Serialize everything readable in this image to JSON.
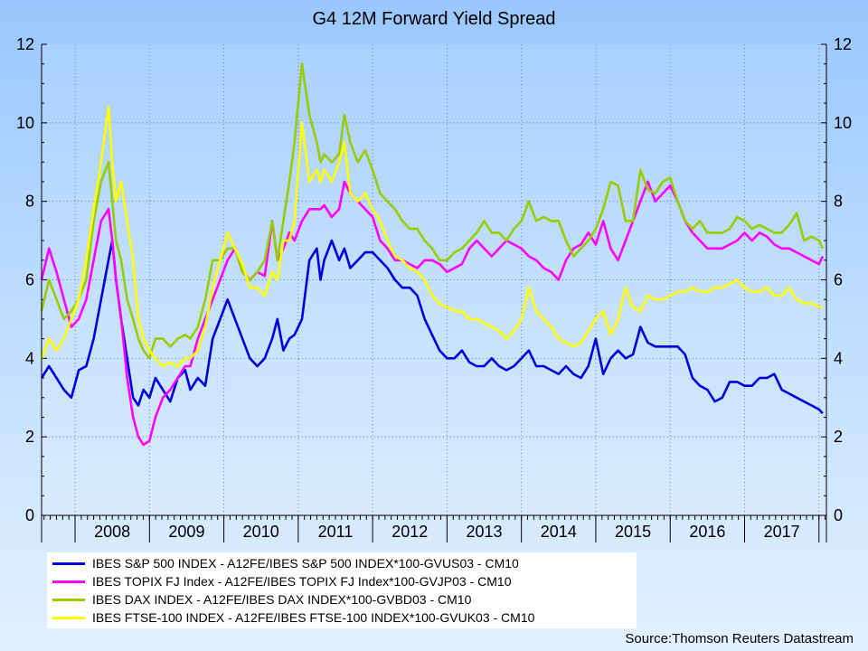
{
  "chart_data": {
    "type": "line",
    "title": "G4 12M Forward Yield Spread",
    "source": "Source:Thomson Reuters Datastream",
    "xlabel": "",
    "ylabel": "",
    "ylim": [
      0,
      12
    ],
    "xlim": [
      2007.55,
      2018.1
    ],
    "y_ticks": [
      "0",
      "2",
      "4",
      "6",
      "8",
      "10",
      "12"
    ],
    "x_labels": [
      "2008",
      "2009",
      "2010",
      "2011",
      "2012",
      "2013",
      "2014",
      "2015",
      "2016",
      "2017"
    ],
    "grid": true,
    "legend_position": "bottom-left",
    "series": [
      {
        "name": "IBES S&P 500 INDEX - A12FE/IBES S&P 500 INDEX*100-GVUS03 - CM10",
        "color": "#0000dd",
        "x": [
          2007.55,
          2007.65,
          2007.75,
          2007.85,
          2007.95,
          2008.05,
          2008.15,
          2008.25,
          2008.35,
          2008.45,
          2008.5,
          2008.55,
          2008.62,
          2008.7,
          2008.78,
          2008.85,
          2008.92,
          2009.0,
          2009.08,
          2009.18,
          2009.28,
          2009.38,
          2009.48,
          2009.55,
          2009.65,
          2009.75,
          2009.85,
          2009.95,
          2010.05,
          2010.15,
          2010.25,
          2010.35,
          2010.45,
          2010.55,
          2010.65,
          2010.72,
          2010.8,
          2010.88,
          2010.95,
          2011.05,
          2011.15,
          2011.25,
          2011.3,
          2011.35,
          2011.45,
          2011.55,
          2011.62,
          2011.7,
          2011.8,
          2011.9,
          2012.0,
          2012.1,
          2012.2,
          2012.3,
          2012.4,
          2012.5,
          2012.6,
          2012.7,
          2012.8,
          2012.9,
          2013.0,
          2013.1,
          2013.2,
          2013.3,
          2013.4,
          2013.5,
          2013.6,
          2013.7,
          2013.8,
          2013.9,
          2014.0,
          2014.1,
          2014.2,
          2014.3,
          2014.4,
          2014.5,
          2014.6,
          2014.7,
          2014.8,
          2014.9,
          2015.0,
          2015.1,
          2015.2,
          2015.3,
          2015.4,
          2015.5,
          2015.6,
          2015.7,
          2015.8,
          2015.9,
          2016.0,
          2016.1,
          2016.2,
          2016.3,
          2016.4,
          2016.5,
          2016.6,
          2016.7,
          2016.8,
          2016.9,
          2017.0,
          2017.1,
          2017.2,
          2017.3,
          2017.4,
          2017.5,
          2017.6,
          2017.7,
          2017.8,
          2017.9,
          2018.0,
          2018.05
        ],
        "values": [
          3.5,
          3.8,
          3.5,
          3.2,
          3.0,
          3.7,
          3.8,
          4.5,
          5.5,
          6.5,
          7.0,
          6.0,
          5.0,
          4.0,
          3.0,
          2.8,
          3.2,
          3.0,
          3.5,
          3.2,
          2.9,
          3.5,
          3.7,
          3.2,
          3.5,
          3.3,
          4.5,
          5.0,
          5.5,
          5.0,
          4.5,
          4.0,
          3.8,
          4.0,
          4.5,
          5.0,
          4.2,
          4.5,
          4.6,
          5.0,
          6.5,
          6.8,
          6.0,
          6.5,
          7.0,
          6.5,
          6.8,
          6.3,
          6.5,
          6.7,
          6.7,
          6.5,
          6.3,
          6.0,
          5.8,
          5.8,
          5.6,
          5.0,
          4.6,
          4.2,
          4.0,
          4.0,
          4.2,
          3.9,
          3.8,
          3.8,
          4.0,
          3.8,
          3.7,
          3.8,
          4.0,
          4.2,
          3.8,
          3.8,
          3.7,
          3.6,
          3.8,
          3.6,
          3.5,
          3.8,
          4.5,
          3.6,
          4.0,
          4.2,
          4.0,
          4.1,
          4.8,
          4.4,
          4.3,
          4.3,
          4.3,
          4.3,
          4.1,
          3.5,
          3.3,
          3.2,
          2.9,
          3.0,
          3.4,
          3.4,
          3.3,
          3.3,
          3.5,
          3.5,
          3.6,
          3.2,
          3.1,
          3.0,
          2.9,
          2.8,
          2.7,
          2.6
        ]
      },
      {
        "name": "IBES TOPIX FJ Index - A12FE/IBES TOPIX FJ Index*100-GVJP03 - CM10",
        "color": "#ff00ff",
        "x": [
          2007.55,
          2007.65,
          2007.75,
          2007.85,
          2007.95,
          2008.05,
          2008.15,
          2008.25,
          2008.35,
          2008.45,
          2008.5,
          2008.55,
          2008.62,
          2008.7,
          2008.78,
          2008.85,
          2008.92,
          2009.0,
          2009.08,
          2009.18,
          2009.28,
          2009.38,
          2009.48,
          2009.55,
          2009.65,
          2009.75,
          2009.85,
          2009.95,
          2010.05,
          2010.15,
          2010.25,
          2010.35,
          2010.45,
          2010.55,
          2010.65,
          2010.72,
          2010.8,
          2010.88,
          2010.95,
          2011.05,
          2011.15,
          2011.25,
          2011.3,
          2011.35,
          2011.45,
          2011.55,
          2011.62,
          2011.7,
          2011.8,
          2011.9,
          2012.0,
          2012.1,
          2012.2,
          2012.3,
          2012.4,
          2012.5,
          2012.6,
          2012.7,
          2012.8,
          2012.9,
          2013.0,
          2013.1,
          2013.2,
          2013.3,
          2013.4,
          2013.5,
          2013.6,
          2013.7,
          2013.8,
          2013.9,
          2014.0,
          2014.1,
          2014.2,
          2014.3,
          2014.4,
          2014.5,
          2014.6,
          2014.7,
          2014.8,
          2014.9,
          2015.0,
          2015.1,
          2015.2,
          2015.3,
          2015.4,
          2015.5,
          2015.6,
          2015.7,
          2015.8,
          2015.9,
          2016.0,
          2016.1,
          2016.2,
          2016.3,
          2016.4,
          2016.5,
          2016.6,
          2016.7,
          2016.8,
          2016.9,
          2017.0,
          2017.1,
          2017.2,
          2017.3,
          2017.4,
          2017.5,
          2017.6,
          2017.7,
          2017.8,
          2017.9,
          2018.0,
          2018.05
        ],
        "values": [
          6.0,
          6.8,
          6.2,
          5.5,
          4.8,
          5.0,
          5.5,
          6.5,
          7.5,
          7.8,
          7.0,
          6.0,
          5.0,
          3.5,
          2.5,
          2.0,
          1.8,
          1.9,
          2.5,
          3.0,
          3.2,
          3.5,
          3.8,
          3.8,
          4.5,
          5.0,
          5.5,
          6.0,
          6.5,
          6.8,
          6.2,
          6.0,
          6.2,
          6.1,
          7.5,
          6.5,
          6.8,
          7.2,
          7.0,
          7.5,
          7.8,
          7.8,
          7.8,
          7.9,
          7.6,
          7.8,
          8.5,
          8.2,
          8.0,
          7.8,
          7.6,
          7.0,
          6.8,
          6.5,
          6.5,
          6.4,
          6.3,
          6.5,
          6.5,
          6.4,
          6.2,
          6.3,
          6.4,
          6.8,
          7.0,
          6.8,
          6.6,
          6.8,
          7.0,
          6.9,
          6.8,
          6.6,
          6.5,
          6.3,
          6.2,
          6.0,
          6.5,
          6.8,
          6.9,
          7.2,
          6.9,
          7.5,
          6.8,
          6.5,
          7.0,
          7.5,
          8.0,
          8.5,
          8.0,
          8.2,
          8.4,
          8.0,
          7.5,
          7.2,
          7.0,
          6.8,
          6.8,
          6.8,
          6.9,
          7.0,
          7.2,
          7.0,
          7.2,
          7.1,
          6.9,
          6.8,
          6.8,
          6.7,
          6.6,
          6.5,
          6.4,
          6.6
        ]
      },
      {
        "name": "IBES DAX INDEX - A12FE/IBES DAX INDEX*100-GVBD03 - CM10",
        "color": "#99cc00",
        "x": [
          2007.55,
          2007.65,
          2007.75,
          2007.85,
          2007.95,
          2008.05,
          2008.15,
          2008.25,
          2008.35,
          2008.45,
          2008.5,
          2008.55,
          2008.62,
          2008.7,
          2008.78,
          2008.85,
          2008.92,
          2009.0,
          2009.08,
          2009.18,
          2009.28,
          2009.38,
          2009.48,
          2009.55,
          2009.65,
          2009.75,
          2009.85,
          2009.95,
          2010.05,
          2010.15,
          2010.25,
          2010.35,
          2010.45,
          2010.55,
          2010.65,
          2010.72,
          2010.8,
          2010.88,
          2010.95,
          2011.05,
          2011.15,
          2011.25,
          2011.3,
          2011.35,
          2011.45,
          2011.55,
          2011.62,
          2011.7,
          2011.8,
          2011.9,
          2012.0,
          2012.1,
          2012.2,
          2012.3,
          2012.4,
          2012.5,
          2012.6,
          2012.7,
          2012.8,
          2012.9,
          2013.0,
          2013.1,
          2013.2,
          2013.3,
          2013.4,
          2013.5,
          2013.6,
          2013.7,
          2013.8,
          2013.9,
          2014.0,
          2014.1,
          2014.2,
          2014.3,
          2014.4,
          2014.5,
          2014.6,
          2014.7,
          2014.8,
          2014.9,
          2015.0,
          2015.1,
          2015.2,
          2015.3,
          2015.4,
          2015.5,
          2015.6,
          2015.7,
          2015.8,
          2015.9,
          2016.0,
          2016.1,
          2016.2,
          2016.3,
          2016.4,
          2016.5,
          2016.6,
          2016.7,
          2016.8,
          2016.9,
          2017.0,
          2017.1,
          2017.2,
          2017.3,
          2017.4,
          2017.5,
          2017.6,
          2017.7,
          2017.8,
          2017.9,
          2018.0,
          2018.05
        ],
        "values": [
          5.2,
          6.0,
          5.5,
          5.0,
          5.2,
          5.5,
          6.0,
          7.5,
          8.5,
          9.0,
          8.0,
          7.0,
          6.5,
          5.5,
          5.0,
          4.5,
          4.2,
          4.0,
          4.5,
          4.5,
          4.3,
          4.5,
          4.6,
          4.5,
          4.8,
          5.5,
          6.5,
          6.5,
          6.8,
          6.8,
          6.2,
          6.0,
          6.2,
          6.5,
          7.5,
          6.5,
          7.5,
          8.5,
          9.5,
          11.5,
          10.2,
          9.5,
          9.0,
          9.2,
          9.0,
          9.2,
          10.2,
          9.5,
          9.0,
          9.3,
          8.8,
          8.2,
          8.0,
          7.8,
          7.5,
          7.3,
          7.3,
          7.0,
          6.8,
          6.5,
          6.5,
          6.7,
          6.8,
          7.0,
          7.2,
          7.5,
          7.2,
          7.2,
          7.0,
          7.3,
          7.5,
          8.0,
          7.5,
          7.6,
          7.5,
          7.5,
          7.0,
          6.6,
          6.8,
          7.0,
          7.3,
          7.8,
          8.5,
          8.4,
          7.5,
          7.5,
          8.8,
          8.3,
          8.2,
          8.5,
          8.6,
          8.0,
          7.5,
          7.3,
          7.5,
          7.2,
          7.2,
          7.2,
          7.3,
          7.6,
          7.5,
          7.3,
          7.4,
          7.3,
          7.2,
          7.2,
          7.4,
          7.7,
          7.0,
          7.1,
          7.0,
          6.8
        ]
      },
      {
        "name": "IBES FTSE-100 INDEX - A12FE/IBES FTSE-100 INDEX*100-GVUK03 - CM10",
        "color": "#ffff00",
        "x": [
          2007.55,
          2007.65,
          2007.75,
          2007.85,
          2007.95,
          2008.05,
          2008.15,
          2008.25,
          2008.35,
          2008.45,
          2008.5,
          2008.55,
          2008.62,
          2008.7,
          2008.78,
          2008.85,
          2008.92,
          2009.0,
          2009.08,
          2009.18,
          2009.28,
          2009.38,
          2009.48,
          2009.55,
          2009.65,
          2009.75,
          2009.85,
          2009.95,
          2010.05,
          2010.15,
          2010.25,
          2010.35,
          2010.45,
          2010.55,
          2010.65,
          2010.72,
          2010.8,
          2010.88,
          2010.95,
          2011.05,
          2011.15,
          2011.25,
          2011.3,
          2011.35,
          2011.45,
          2011.55,
          2011.62,
          2011.7,
          2011.8,
          2011.9,
          2012.0,
          2012.1,
          2012.2,
          2012.3,
          2012.4,
          2012.5,
          2012.6,
          2012.7,
          2012.8,
          2012.9,
          2013.0,
          2013.1,
          2013.2,
          2013.3,
          2013.4,
          2013.5,
          2013.6,
          2013.7,
          2013.8,
          2013.9,
          2014.0,
          2014.1,
          2014.2,
          2014.3,
          2014.4,
          2014.5,
          2014.6,
          2014.7,
          2014.8,
          2014.9,
          2015.0,
          2015.1,
          2015.2,
          2015.3,
          2015.4,
          2015.5,
          2015.6,
          2015.7,
          2015.8,
          2015.9,
          2016.0,
          2016.1,
          2016.2,
          2016.3,
          2016.4,
          2016.5,
          2016.6,
          2016.7,
          2016.8,
          2016.9,
          2017.0,
          2017.1,
          2017.2,
          2017.3,
          2017.4,
          2017.5,
          2017.6,
          2017.7,
          2017.8,
          2017.9,
          2018.0,
          2018.05
        ],
        "values": [
          4.0,
          4.5,
          4.2,
          4.5,
          5.0,
          5.5,
          6.5,
          7.8,
          9.0,
          10.4,
          9.0,
          8.0,
          8.5,
          7.5,
          6.5,
          5.0,
          4.5,
          4.2,
          4.0,
          3.8,
          3.9,
          3.8,
          4.0,
          4.0,
          4.2,
          4.8,
          5.8,
          6.5,
          7.2,
          6.8,
          6.4,
          5.8,
          5.8,
          5.6,
          6.2,
          6.0,
          7.0,
          7.0,
          7.5,
          10.0,
          8.5,
          8.8,
          8.5,
          8.8,
          8.5,
          9.0,
          9.5,
          8.2,
          8.0,
          8.2,
          7.8,
          7.5,
          7.0,
          6.6,
          6.5,
          6.3,
          6.2,
          6.0,
          5.6,
          5.4,
          5.3,
          5.2,
          5.2,
          5.0,
          5.0,
          4.9,
          4.8,
          4.7,
          4.5,
          4.7,
          5.0,
          5.8,
          5.2,
          5.0,
          4.8,
          4.5,
          4.4,
          4.3,
          4.4,
          4.7,
          5.0,
          5.2,
          4.6,
          5.0,
          5.8,
          5.3,
          5.2,
          5.6,
          5.5,
          5.5,
          5.6,
          5.7,
          5.7,
          5.8,
          5.7,
          5.7,
          5.8,
          5.8,
          5.9,
          6.0,
          5.8,
          5.7,
          5.7,
          5.8,
          5.6,
          5.6,
          5.8,
          5.5,
          5.4,
          5.4,
          5.3,
          5.3
        ]
      }
    ]
  }
}
